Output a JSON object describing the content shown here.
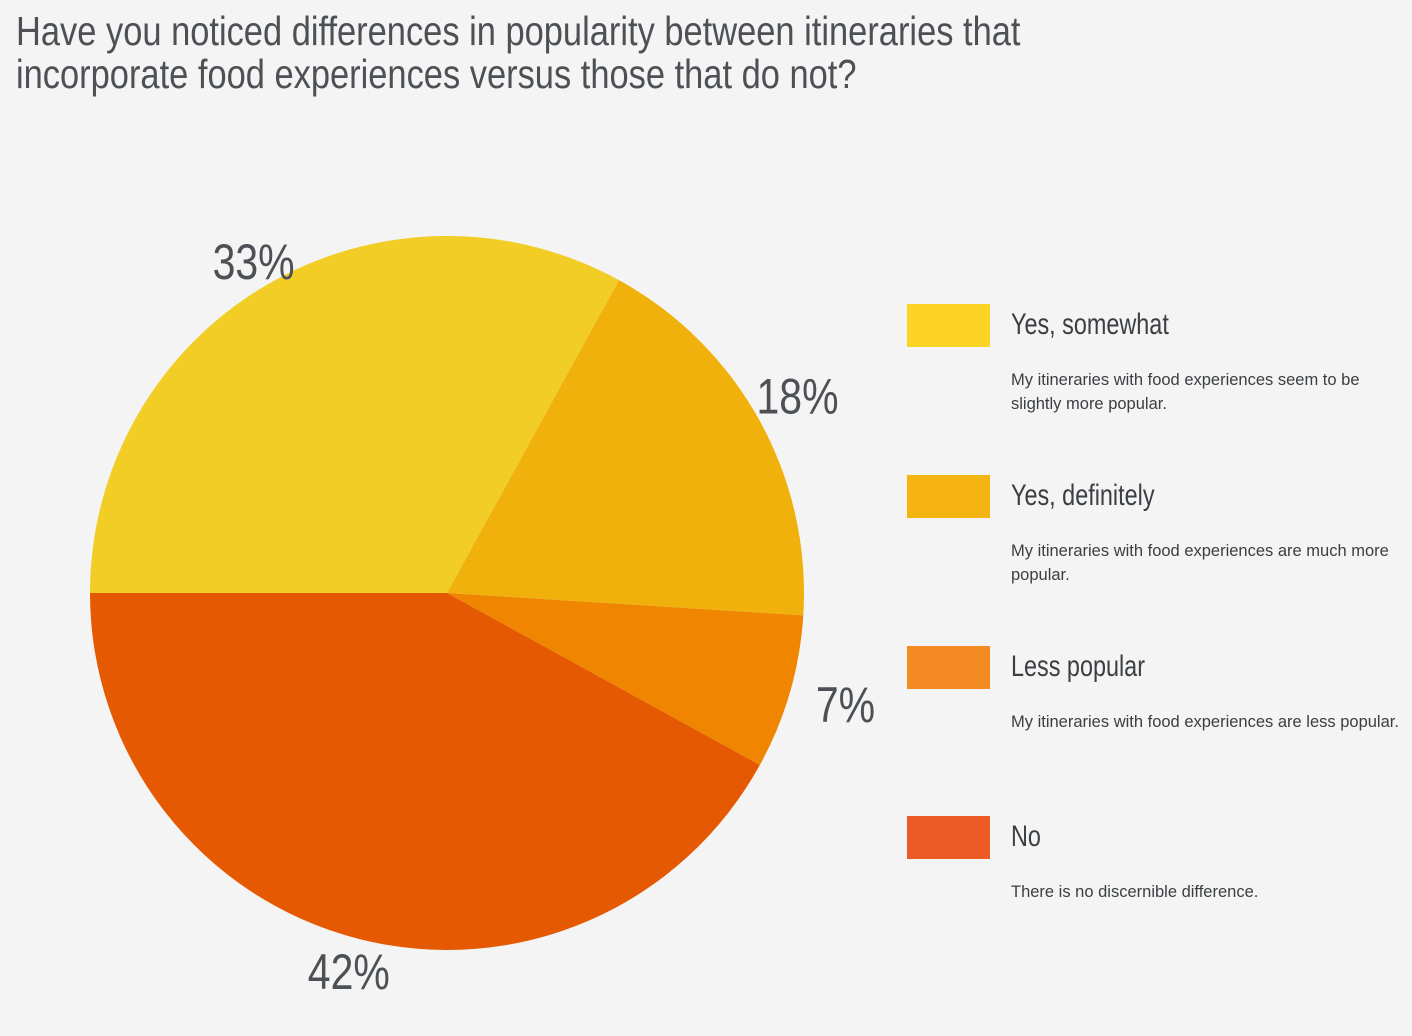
{
  "title": "Have you noticed differences in popularity between itineraries that incorporate food experiences versus those that do not?",
  "chart_data": {
    "type": "pie",
    "title": "Have you noticed differences in popularity between itineraries that incorporate food experiences versus those that do not?",
    "slices": [
      {
        "name": "Yes, somewhat",
        "value": 33,
        "label": "33%",
        "color": "#f2cd25"
      },
      {
        "name": "Yes, definitely",
        "value": 18,
        "label": "18%",
        "color": "#f1b10c"
      },
      {
        "name": "Less popular",
        "value": 7,
        "label": "7%",
        "color": "#f08500"
      },
      {
        "name": "No",
        "value": 42,
        "label": "42%",
        "color": "#e55902"
      }
    ],
    "legend_placement": "right"
  },
  "legend": [
    {
      "label": "Yes, somewhat",
      "description": "My itineraries with food experiences seem to be slightly more popular.",
      "color": "#fdd325"
    },
    {
      "label": "Yes, definitely",
      "description": "My itineraries with food experiences are much more popular.",
      "color": "#f6b413"
    },
    {
      "label": "Less popular",
      "description": "My itineraries with food experiences are less popular.",
      "color": "#f48b22"
    },
    {
      "label": "No",
      "description": "There is no discernible difference.",
      "color": "#ec5b26"
    }
  ]
}
